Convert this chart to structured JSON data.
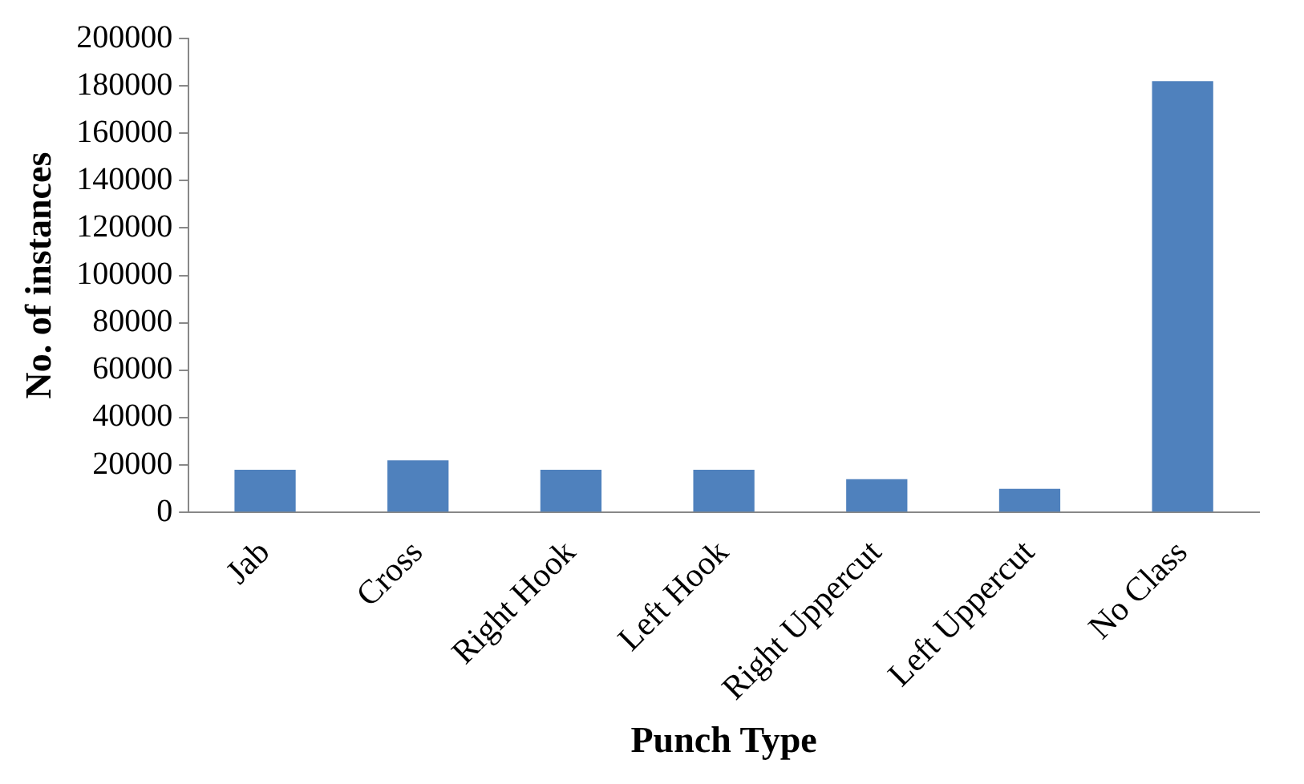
{
  "chart_data": {
    "type": "bar",
    "xlabel": "Punch Type",
    "ylabel": "No. of instances",
    "categories": [
      "Jab",
      "Cross",
      "Right Hook",
      "Left Hook",
      "Right Uppercut",
      "Left Uppercut",
      "No Class"
    ],
    "values": [
      18000,
      22000,
      18000,
      18000,
      14000,
      10000,
      182000
    ],
    "color": "#4f81bd",
    "ylim": [
      0,
      200000
    ],
    "yticks": [
      0,
      20000,
      40000,
      60000,
      80000,
      100000,
      120000,
      140000,
      160000,
      180000,
      200000
    ],
    "grid": false,
    "legend": false
  }
}
